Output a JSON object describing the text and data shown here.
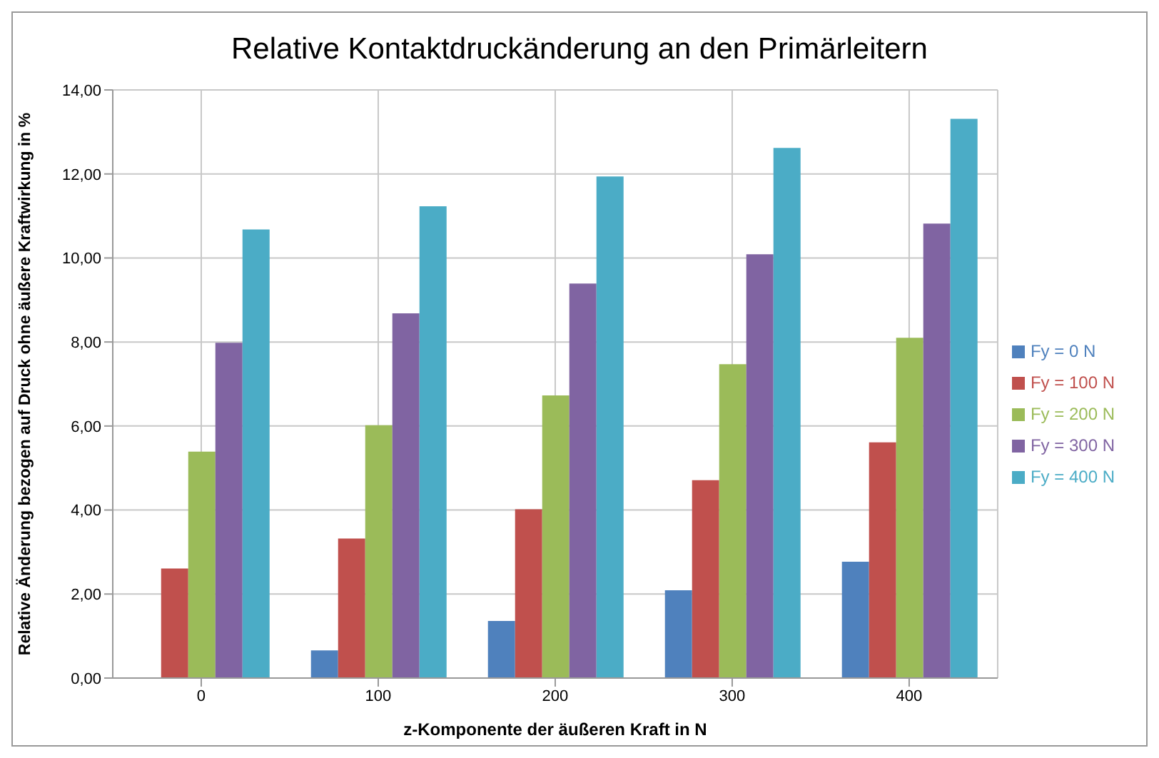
{
  "chart_data": {
    "type": "bar",
    "title": "Relative Kontaktdruckänderung an den Primärleitern",
    "xlabel": "z-Komponente der äußeren Kraft in N",
    "ylabel": "Relative Änderung bezogen auf Druck ohne äußere Kraftwirkung in %",
    "categories": [
      "0",
      "100",
      "200",
      "300",
      "400"
    ],
    "series": [
      {
        "name": "Fy = 0 N",
        "color": "#4f81bd",
        "values": [
          0,
          0.66,
          1.36,
          2.09,
          2.77
        ]
      },
      {
        "name": "Fy = 100 N",
        "color": "#c0504d",
        "values": [
          2.61,
          3.32,
          4.02,
          4.71,
          5.61
        ]
      },
      {
        "name": "Fy = 200 N",
        "color": "#9bbb59",
        "values": [
          5.39,
          6.02,
          6.73,
          7.47,
          8.1
        ]
      },
      {
        "name": "Fy = 300 N",
        "color": "#8064a2",
        "values": [
          7.98,
          8.68,
          9.39,
          10.09,
          10.82
        ]
      },
      {
        "name": "Fy = 400 N",
        "color": "#4bacc6",
        "values": [
          10.68,
          11.23,
          11.94,
          12.62,
          13.31
        ]
      }
    ],
    "ylim": [
      0,
      14
    ],
    "yticks": [
      {
        "value": 0,
        "label": "0,00"
      },
      {
        "value": 2,
        "label": "2,00"
      },
      {
        "value": 4,
        "label": "4,00"
      },
      {
        "value": 6,
        "label": "6,00"
      },
      {
        "value": 8,
        "label": "8,00"
      },
      {
        "value": 10,
        "label": "10,00"
      },
      {
        "value": 12,
        "label": "12,00"
      },
      {
        "value": 14,
        "label": "14,00"
      }
    ],
    "grid": true,
    "legend": "right"
  }
}
